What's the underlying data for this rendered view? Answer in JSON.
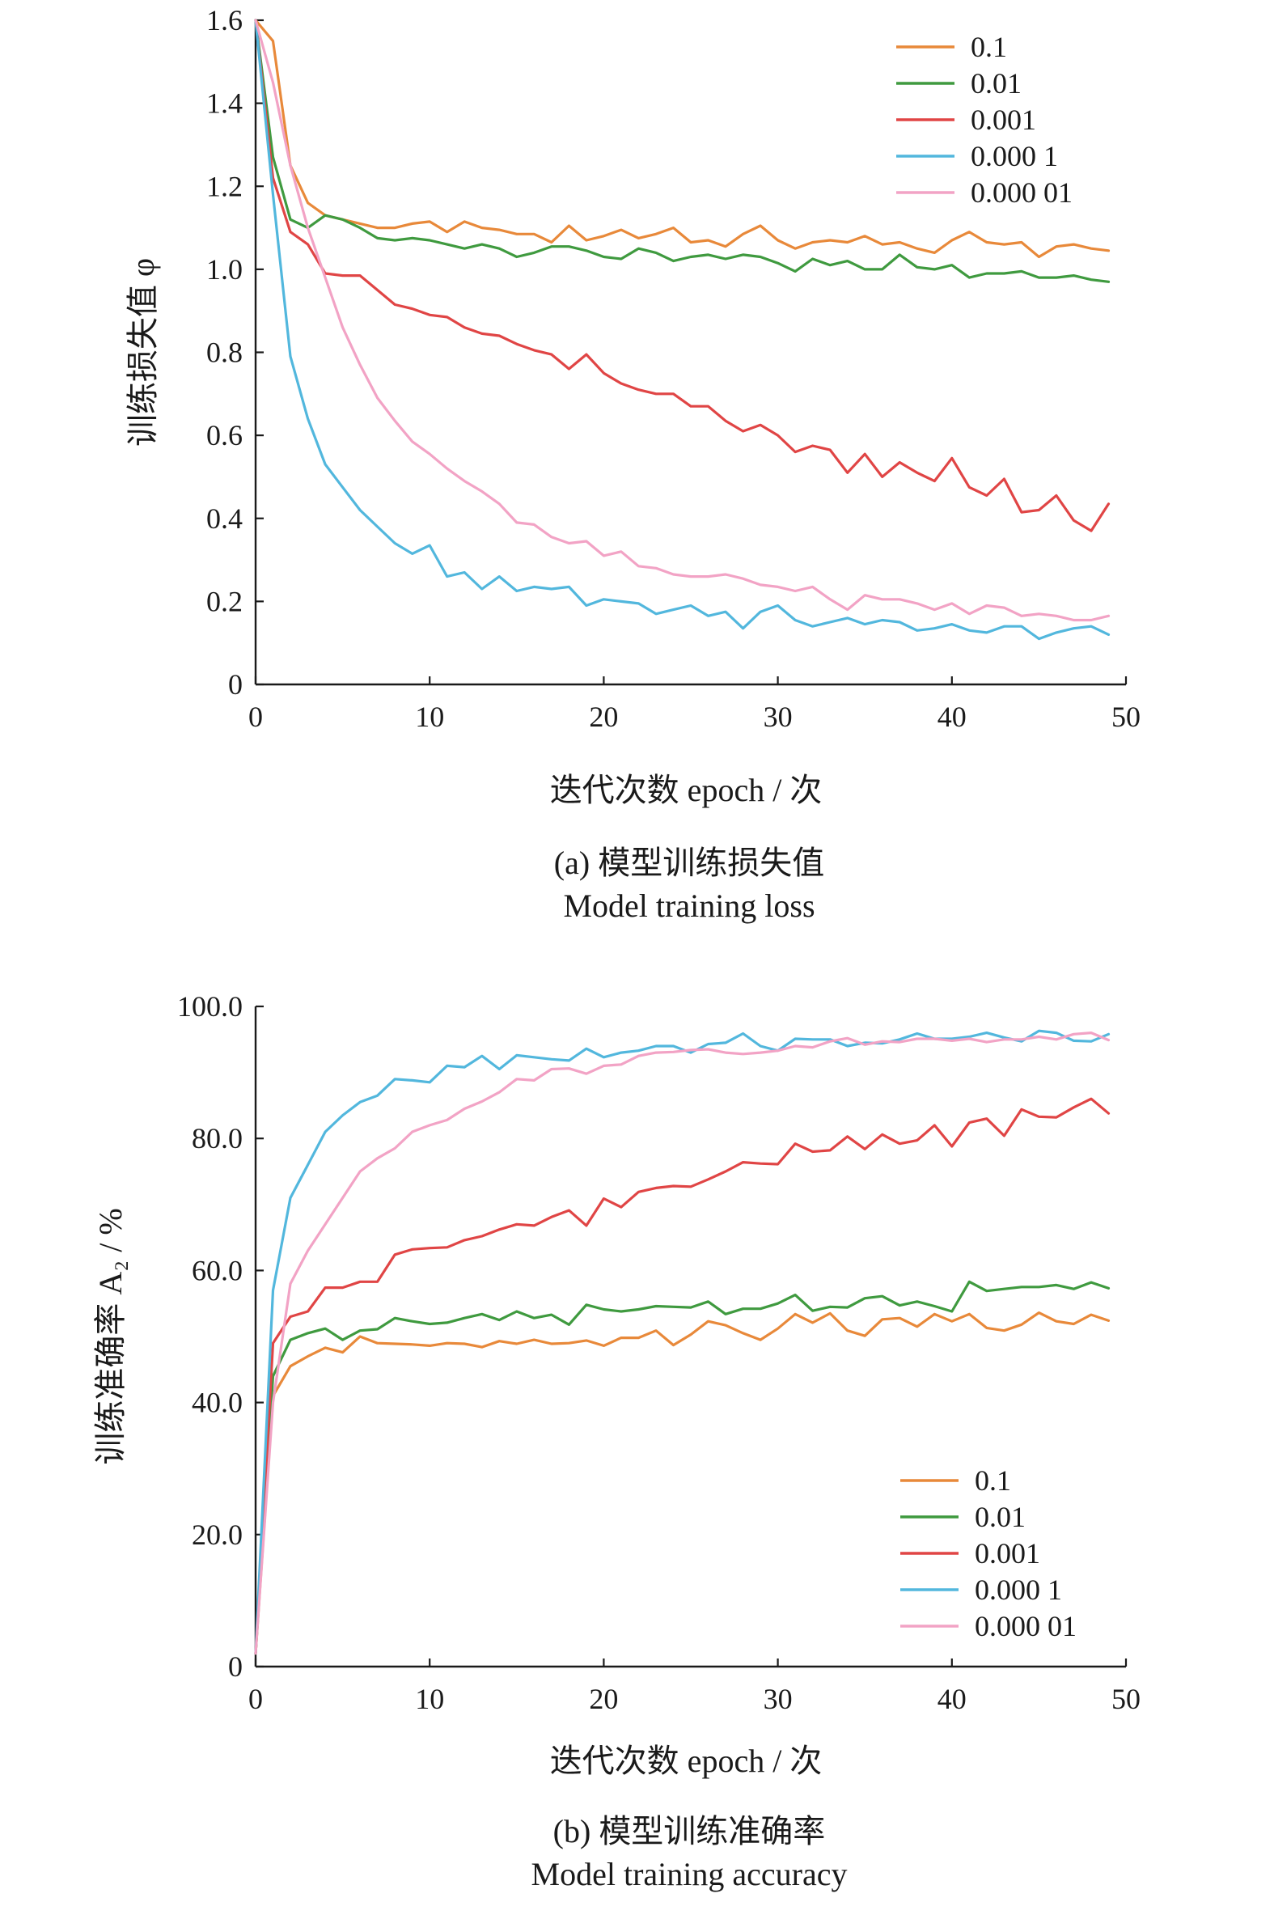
{
  "chart_data": [
    {
      "id": "a",
      "type": "line",
      "xlabel": "迭代次数 epoch / 次",
      "ylabel": "训练损失值 φ",
      "caption_cn": "(a) 模型训练损失值",
      "caption_en": "Model training loss",
      "xlim": [
        0,
        50
      ],
      "ylim": [
        0,
        1.6
      ],
      "xticks": [
        0,
        10,
        20,
        30,
        40,
        50
      ],
      "xtick_labels": [
        "0",
        "10",
        "20",
        "30",
        "40",
        "50"
      ],
      "yticks": [
        0,
        0.2,
        0.4,
        0.6,
        0.8,
        1.0,
        1.2,
        1.4,
        1.6
      ],
      "ytick_labels": [
        "0",
        "0.2",
        "0.4",
        "0.6",
        "0.8",
        "1.0",
        "1.2",
        "1.4",
        "1.6"
      ],
      "grid": false,
      "legend_position": "top-right",
      "x": [
        0,
        1,
        2,
        3,
        4,
        5,
        6,
        7,
        8,
        9,
        10,
        11,
        12,
        13,
        14,
        15,
        16,
        17,
        18,
        19,
        20,
        21,
        22,
        23,
        24,
        25,
        26,
        27,
        28,
        29,
        30,
        31,
        32,
        33,
        34,
        35,
        36,
        37,
        38,
        39,
        40,
        41,
        42,
        43,
        44,
        45,
        46,
        47,
        48,
        49
      ],
      "series": [
        {
          "name": "0.1",
          "color": "#e8893a",
          "values": [
            1.6,
            1.55,
            1.25,
            1.16,
            1.13,
            1.12,
            1.11,
            1.1,
            1.1,
            1.11,
            1.115,
            1.09,
            1.115,
            1.1,
            1.095,
            1.085,
            1.085,
            1.065,
            1.105,
            1.07,
            1.08,
            1.095,
            1.075,
            1.085,
            1.1,
            1.065,
            1.07,
            1.055,
            1.085,
            1.105,
            1.07,
            1.05,
            1.065,
            1.07,
            1.065,
            1.08,
            1.06,
            1.065,
            1.05,
            1.04,
            1.07,
            1.09,
            1.065,
            1.06,
            1.065,
            1.03,
            1.055,
            1.06,
            1.05,
            1.045
          ]
        },
        {
          "name": "0.01",
          "color": "#3f9a3f",
          "values": [
            1.6,
            1.27,
            1.12,
            1.1,
            1.13,
            1.12,
            1.1,
            1.075,
            1.07,
            1.075,
            1.07,
            1.06,
            1.05,
            1.06,
            1.05,
            1.03,
            1.04,
            1.055,
            1.055,
            1.045,
            1.03,
            1.025,
            1.05,
            1.04,
            1.02,
            1.03,
            1.035,
            1.025,
            1.035,
            1.03,
            1.015,
            0.995,
            1.025,
            1.01,
            1.02,
            1.0,
            1.0,
            1.035,
            1.005,
            1.0,
            1.01,
            0.98,
            0.99,
            0.99,
            0.995,
            0.98,
            0.98,
            0.985,
            0.975,
            0.97
          ]
        },
        {
          "name": "0.001",
          "color": "#e04545",
          "values": [
            1.6,
            1.22,
            1.09,
            1.06,
            0.99,
            0.985,
            0.985,
            0.95,
            0.915,
            0.905,
            0.89,
            0.885,
            0.86,
            0.845,
            0.84,
            0.82,
            0.805,
            0.795,
            0.76,
            0.795,
            0.75,
            0.725,
            0.71,
            0.7,
            0.7,
            0.67,
            0.67,
            0.635,
            0.61,
            0.625,
            0.6,
            0.56,
            0.575,
            0.565,
            0.51,
            0.555,
            0.5,
            0.535,
            0.51,
            0.49,
            0.545,
            0.475,
            0.455,
            0.495,
            0.415,
            0.42,
            0.455,
            0.395,
            0.37,
            0.435
          ]
        },
        {
          "name": "0.000 1",
          "color": "#52b7dd",
          "values": [
            1.6,
            1.18,
            0.79,
            0.64,
            0.53,
            0.475,
            0.42,
            0.38,
            0.34,
            0.315,
            0.335,
            0.26,
            0.27,
            0.23,
            0.26,
            0.225,
            0.235,
            0.23,
            0.235,
            0.19,
            0.205,
            0.2,
            0.195,
            0.17,
            0.18,
            0.19,
            0.165,
            0.175,
            0.135,
            0.175,
            0.19,
            0.155,
            0.14,
            0.15,
            0.16,
            0.145,
            0.155,
            0.15,
            0.13,
            0.135,
            0.145,
            0.13,
            0.125,
            0.14,
            0.14,
            0.11,
            0.125,
            0.135,
            0.14,
            0.12
          ]
        },
        {
          "name": "0.000 01",
          "color": "#f2a3c5",
          "values": [
            1.6,
            1.45,
            1.25,
            1.1,
            0.98,
            0.86,
            0.77,
            0.69,
            0.635,
            0.585,
            0.555,
            0.52,
            0.49,
            0.465,
            0.435,
            0.39,
            0.385,
            0.355,
            0.34,
            0.345,
            0.31,
            0.32,
            0.285,
            0.28,
            0.265,
            0.26,
            0.26,
            0.265,
            0.255,
            0.24,
            0.235,
            0.225,
            0.235,
            0.205,
            0.18,
            0.215,
            0.205,
            0.205,
            0.195,
            0.18,
            0.195,
            0.17,
            0.19,
            0.185,
            0.165,
            0.17,
            0.165,
            0.155,
            0.155,
            0.165
          ]
        }
      ]
    },
    {
      "id": "b",
      "type": "line",
      "xlabel": "迭代次数 epoch / 次",
      "ylabel": "训练准确率 A₂ / %",
      "caption_cn": "(b) 模型训练准确率",
      "caption_en": "Model training accuracy",
      "xlim": [
        0,
        50
      ],
      "ylim": [
        0,
        100
      ],
      "xticks": [
        0,
        10,
        20,
        30,
        40,
        50
      ],
      "xtick_labels": [
        "0",
        "10",
        "20",
        "30",
        "40",
        "50"
      ],
      "yticks": [
        0,
        20,
        40,
        60,
        80,
        100
      ],
      "ytick_labels": [
        "0",
        "20.0",
        "40.0",
        "60.0",
        "80.0",
        "100.0"
      ],
      "grid": false,
      "legend_position": "bottom-right",
      "x": [
        0,
        1,
        2,
        3,
        4,
        5,
        6,
        7,
        8,
        9,
        10,
        11,
        12,
        13,
        14,
        15,
        16,
        17,
        18,
        19,
        20,
        21,
        22,
        23,
        24,
        25,
        26,
        27,
        28,
        29,
        30,
        31,
        32,
        33,
        34,
        35,
        36,
        37,
        38,
        39,
        40,
        41,
        42,
        43,
        44,
        45,
        46,
        47,
        48,
        49
      ],
      "series": [
        {
          "name": "0.1",
          "color": "#e8893a",
          "values": [
            2.0,
            41.0,
            45.5,
            47.0,
            48.3,
            47.6,
            50.0,
            49.0,
            48.9,
            48.8,
            48.6,
            49.0,
            48.9,
            48.4,
            49.3,
            48.9,
            49.5,
            48.9,
            49.0,
            49.4,
            48.6,
            49.8,
            49.8,
            50.9,
            48.7,
            50.3,
            52.3,
            51.7,
            50.5,
            49.5,
            51.2,
            53.4,
            52.1,
            53.5,
            50.9,
            50.1,
            52.6,
            52.8,
            51.5,
            53.4,
            52.3,
            53.4,
            51.3,
            50.9,
            51.8,
            53.6,
            52.3,
            51.9,
            53.3,
            52.4
          ]
        },
        {
          "name": "0.01",
          "color": "#3f9a3f",
          "values": [
            2.0,
            44.0,
            49.5,
            50.5,
            51.2,
            49.5,
            50.9,
            51.1,
            52.8,
            52.3,
            51.9,
            52.1,
            52.8,
            53.4,
            52.5,
            53.8,
            52.8,
            53.3,
            51.8,
            54.8,
            54.1,
            53.8,
            54.1,
            54.6,
            54.5,
            54.4,
            55.3,
            53.4,
            54.2,
            54.2,
            55.0,
            56.3,
            53.9,
            54.5,
            54.4,
            55.8,
            56.1,
            54.7,
            55.3,
            54.6,
            53.8,
            58.3,
            56.9,
            57.2,
            57.5,
            57.5,
            57.8,
            57.2,
            58.2,
            57.3
          ]
        },
        {
          "name": "0.001",
          "color": "#e04545",
          "values": [
            2.0,
            49.0,
            53.0,
            53.8,
            57.4,
            57.4,
            58.3,
            58.3,
            62.4,
            63.2,
            63.4,
            63.5,
            64.6,
            65.2,
            66.2,
            67.0,
            66.8,
            68.1,
            69.1,
            66.8,
            70.9,
            69.6,
            71.9,
            72.5,
            72.8,
            72.7,
            73.8,
            75.0,
            76.4,
            76.2,
            76.1,
            79.2,
            78.0,
            78.2,
            80.3,
            78.4,
            80.6,
            79.2,
            79.7,
            82.0,
            78.8,
            82.4,
            83.0,
            80.4,
            84.4,
            83.3,
            83.2,
            84.7,
            86.0,
            83.8
          ]
        },
        {
          "name": "0.000 1",
          "color": "#52b7dd",
          "values": [
            2.0,
            57.0,
            71.0,
            76.0,
            81.0,
            83.5,
            85.5,
            86.5,
            89.0,
            88.8,
            88.5,
            91.0,
            90.8,
            92.5,
            90.5,
            92.6,
            92.3,
            92.0,
            91.8,
            93.6,
            92.3,
            93.0,
            93.3,
            94.0,
            94.0,
            93.0,
            94.3,
            94.5,
            95.9,
            94.0,
            93.3,
            95.1,
            95.0,
            95.0,
            94.0,
            94.5,
            94.4,
            95.0,
            95.9,
            95.1,
            95.1,
            95.4,
            96.0,
            95.3,
            94.7,
            96.3,
            96.0,
            94.8,
            94.7,
            95.8
          ]
        },
        {
          "name": "0.000 01",
          "color": "#f2a3c5",
          "values": [
            2.0,
            40.0,
            58.0,
            63.0,
            67.0,
            71.0,
            75.0,
            77.0,
            78.5,
            81.0,
            82.0,
            82.8,
            84.5,
            85.6,
            87.0,
            89.0,
            88.8,
            90.5,
            90.6,
            89.8,
            91.0,
            91.2,
            92.5,
            93.0,
            93.1,
            93.4,
            93.5,
            93.0,
            92.8,
            93.0,
            93.3,
            94.0,
            93.8,
            94.7,
            95.2,
            94.2,
            94.7,
            94.6,
            95.1,
            95.1,
            94.8,
            95.1,
            94.6,
            95.0,
            95.0,
            95.4,
            95.0,
            95.8,
            96.0,
            94.9
          ]
        }
      ]
    }
  ]
}
